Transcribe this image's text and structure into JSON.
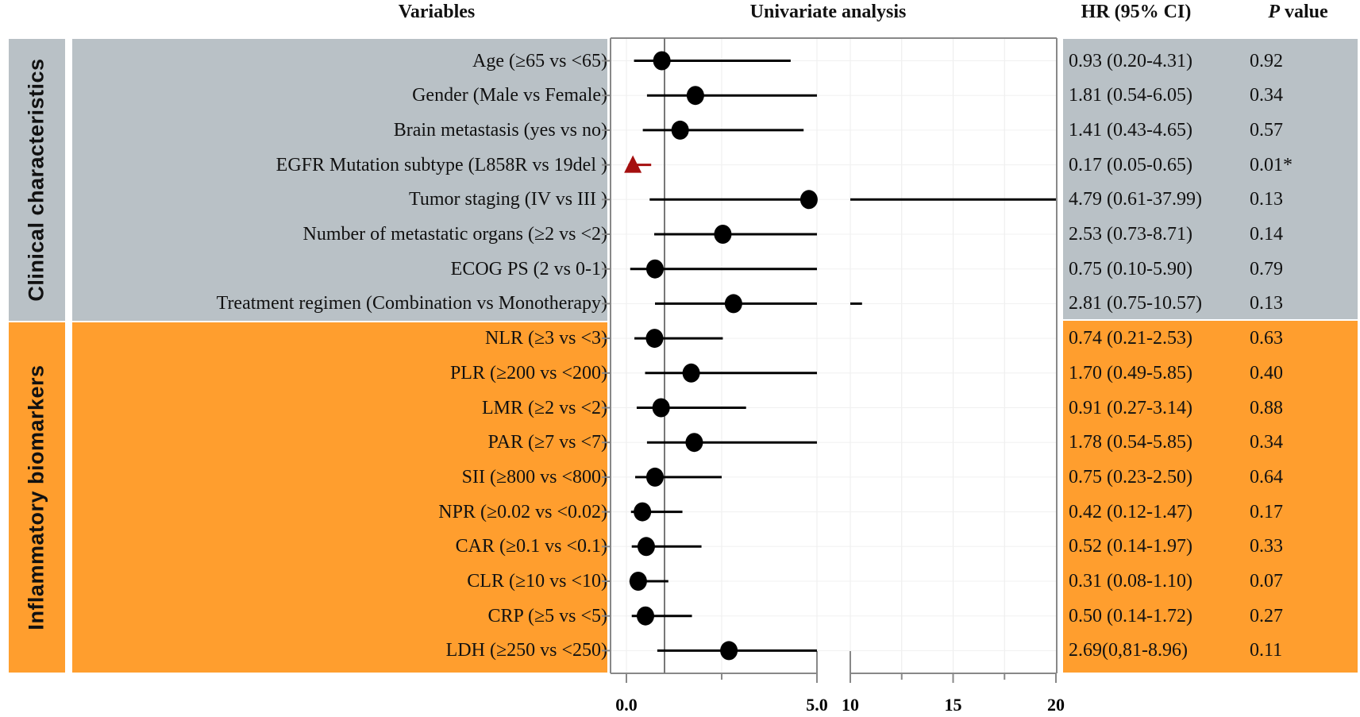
{
  "headers": {
    "variables": "Variables",
    "analysis": "Univariate analysis",
    "hr": "HR (95% CI)",
    "p_italic": "P",
    "p_rest": " value"
  },
  "groups": [
    {
      "label": "Clinical characteristics",
      "color": "#b9c1c6"
    },
    {
      "label": "Inflammatory biomarkers",
      "color": "#ff9e2e"
    }
  ],
  "chart_data": {
    "type": "forest",
    "title": "Univariate analysis",
    "x_ticks": [
      "0.0",
      "5.0",
      "10",
      "15",
      "20"
    ],
    "x_axis": {
      "segments": [
        [
          0,
          5
        ],
        [
          10,
          20
        ]
      ],
      "reference_line": 1,
      "minor_ticks": [
        2.5,
        12.5,
        17.5
      ]
    },
    "grid": true,
    "point_color": "#000000",
    "significant_color": "#a50f0f",
    "rows": [
      {
        "group": 0,
        "variable": "Age (≥65 vs <65)",
        "hr": 0.93,
        "lower": 0.2,
        "upper": 4.31,
        "hr_text": "0.93 (0.20-4.31)",
        "p": "0.92",
        "marker": "circle"
      },
      {
        "group": 0,
        "variable": "Gender (Male vs Female)",
        "hr": 1.81,
        "lower": 0.54,
        "upper": 6.05,
        "hr_text": "1.81 (0.54-6.05)",
        "p": "0.34",
        "marker": "circle"
      },
      {
        "group": 0,
        "variable": "Brain metastasis (yes vs no)",
        "hr": 1.41,
        "lower": 0.43,
        "upper": 4.65,
        "hr_text": "1.41 (0.43-4.65)",
        "p": "0.57",
        "marker": "circle"
      },
      {
        "group": 0,
        "variable": "EGFR Mutation subtype (L858R vs 19del )",
        "hr": 0.17,
        "lower": 0.05,
        "upper": 0.65,
        "hr_text": "0.17 (0.05-0.65)",
        "p": "0.01*",
        "marker": "triangle"
      },
      {
        "group": 0,
        "variable": "Tumor staging (IV vs III )",
        "hr": 4.79,
        "lower": 0.61,
        "upper": 37.99,
        "hr_text": "4.79 (0.61-37.99)",
        "p": "0.13",
        "marker": "circle"
      },
      {
        "group": 0,
        "variable": "Number of metastatic organs (≥2 vs <2)",
        "hr": 2.53,
        "lower": 0.73,
        "upper": 8.71,
        "hr_text": "2.53 (0.73-8.71)",
        "p": "0.14",
        "marker": "circle"
      },
      {
        "group": 0,
        "variable": "ECOG PS (2 vs 0-1)",
        "hr": 0.75,
        "lower": 0.1,
        "upper": 5.9,
        "hr_text": "0.75 (0.10-5.90)",
        "p": "0.79",
        "marker": "circle"
      },
      {
        "group": 0,
        "variable": "Treatment regimen (Combination vs Monotherapy)",
        "hr": 2.81,
        "lower": 0.75,
        "upper": 10.57,
        "hr_text": "2.81 (0.75-10.57)",
        "p": "0.13",
        "marker": "circle"
      },
      {
        "group": 1,
        "variable": "NLR (≥3 vs <3)",
        "hr": 0.74,
        "lower": 0.21,
        "upper": 2.53,
        "hr_text": "0.74 (0.21-2.53)",
        "p": "0.63",
        "marker": "circle"
      },
      {
        "group": 1,
        "variable": "PLR (≥200 vs <200)",
        "hr": 1.7,
        "lower": 0.49,
        "upper": 5.85,
        "hr_text": "1.70 (0.49-5.85)",
        "p": "0.40",
        "marker": "circle"
      },
      {
        "group": 1,
        "variable": "LMR (≥2 vs <2)",
        "hr": 0.91,
        "lower": 0.27,
        "upper": 3.14,
        "hr_text": "0.91 (0.27-3.14)",
        "p": "0.88",
        "marker": "circle"
      },
      {
        "group": 1,
        "variable": "PAR (≥7 vs <7)",
        "hr": 1.78,
        "lower": 0.54,
        "upper": 5.85,
        "hr_text": "1.78 (0.54-5.85)",
        "p": "0.34",
        "marker": "circle"
      },
      {
        "group": 1,
        "variable": "SII (≥800 vs <800)",
        "hr": 0.75,
        "lower": 0.23,
        "upper": 2.5,
        "hr_text": "0.75 (0.23-2.50)",
        "p": "0.64",
        "marker": "circle"
      },
      {
        "group": 1,
        "variable": "NPR (≥0.02 vs <0.02)",
        "hr": 0.42,
        "lower": 0.12,
        "upper": 1.47,
        "hr_text": "0.42 (0.12-1.47)",
        "p": "0.17",
        "marker": "circle"
      },
      {
        "group": 1,
        "variable": "CAR (≥0.1 vs <0.1)",
        "hr": 0.52,
        "lower": 0.14,
        "upper": 1.97,
        "hr_text": "0.52 (0.14-1.97)",
        "p": "0.33",
        "marker": "circle"
      },
      {
        "group": 1,
        "variable": "CLR (≥10 vs <10)",
        "hr": 0.31,
        "lower": 0.08,
        "upper": 1.1,
        "hr_text": "0.31 (0.08-1.10)",
        "p": "0.07",
        "marker": "circle"
      },
      {
        "group": 1,
        "variable": "CRP (≥5 vs <5)",
        "hr": 0.5,
        "lower": 0.14,
        "upper": 1.72,
        "hr_text": "0.50 (0.14-1.72)",
        "p": "0.27",
        "marker": "circle"
      },
      {
        "group": 1,
        "variable": "LDH (≥250 vs <250)",
        "hr": 2.69,
        "lower": 0.81,
        "upper": 8.96,
        "hr_text": "2.69(0,81-8.96)",
        "p": "0.11",
        "marker": "circle"
      }
    ]
  }
}
